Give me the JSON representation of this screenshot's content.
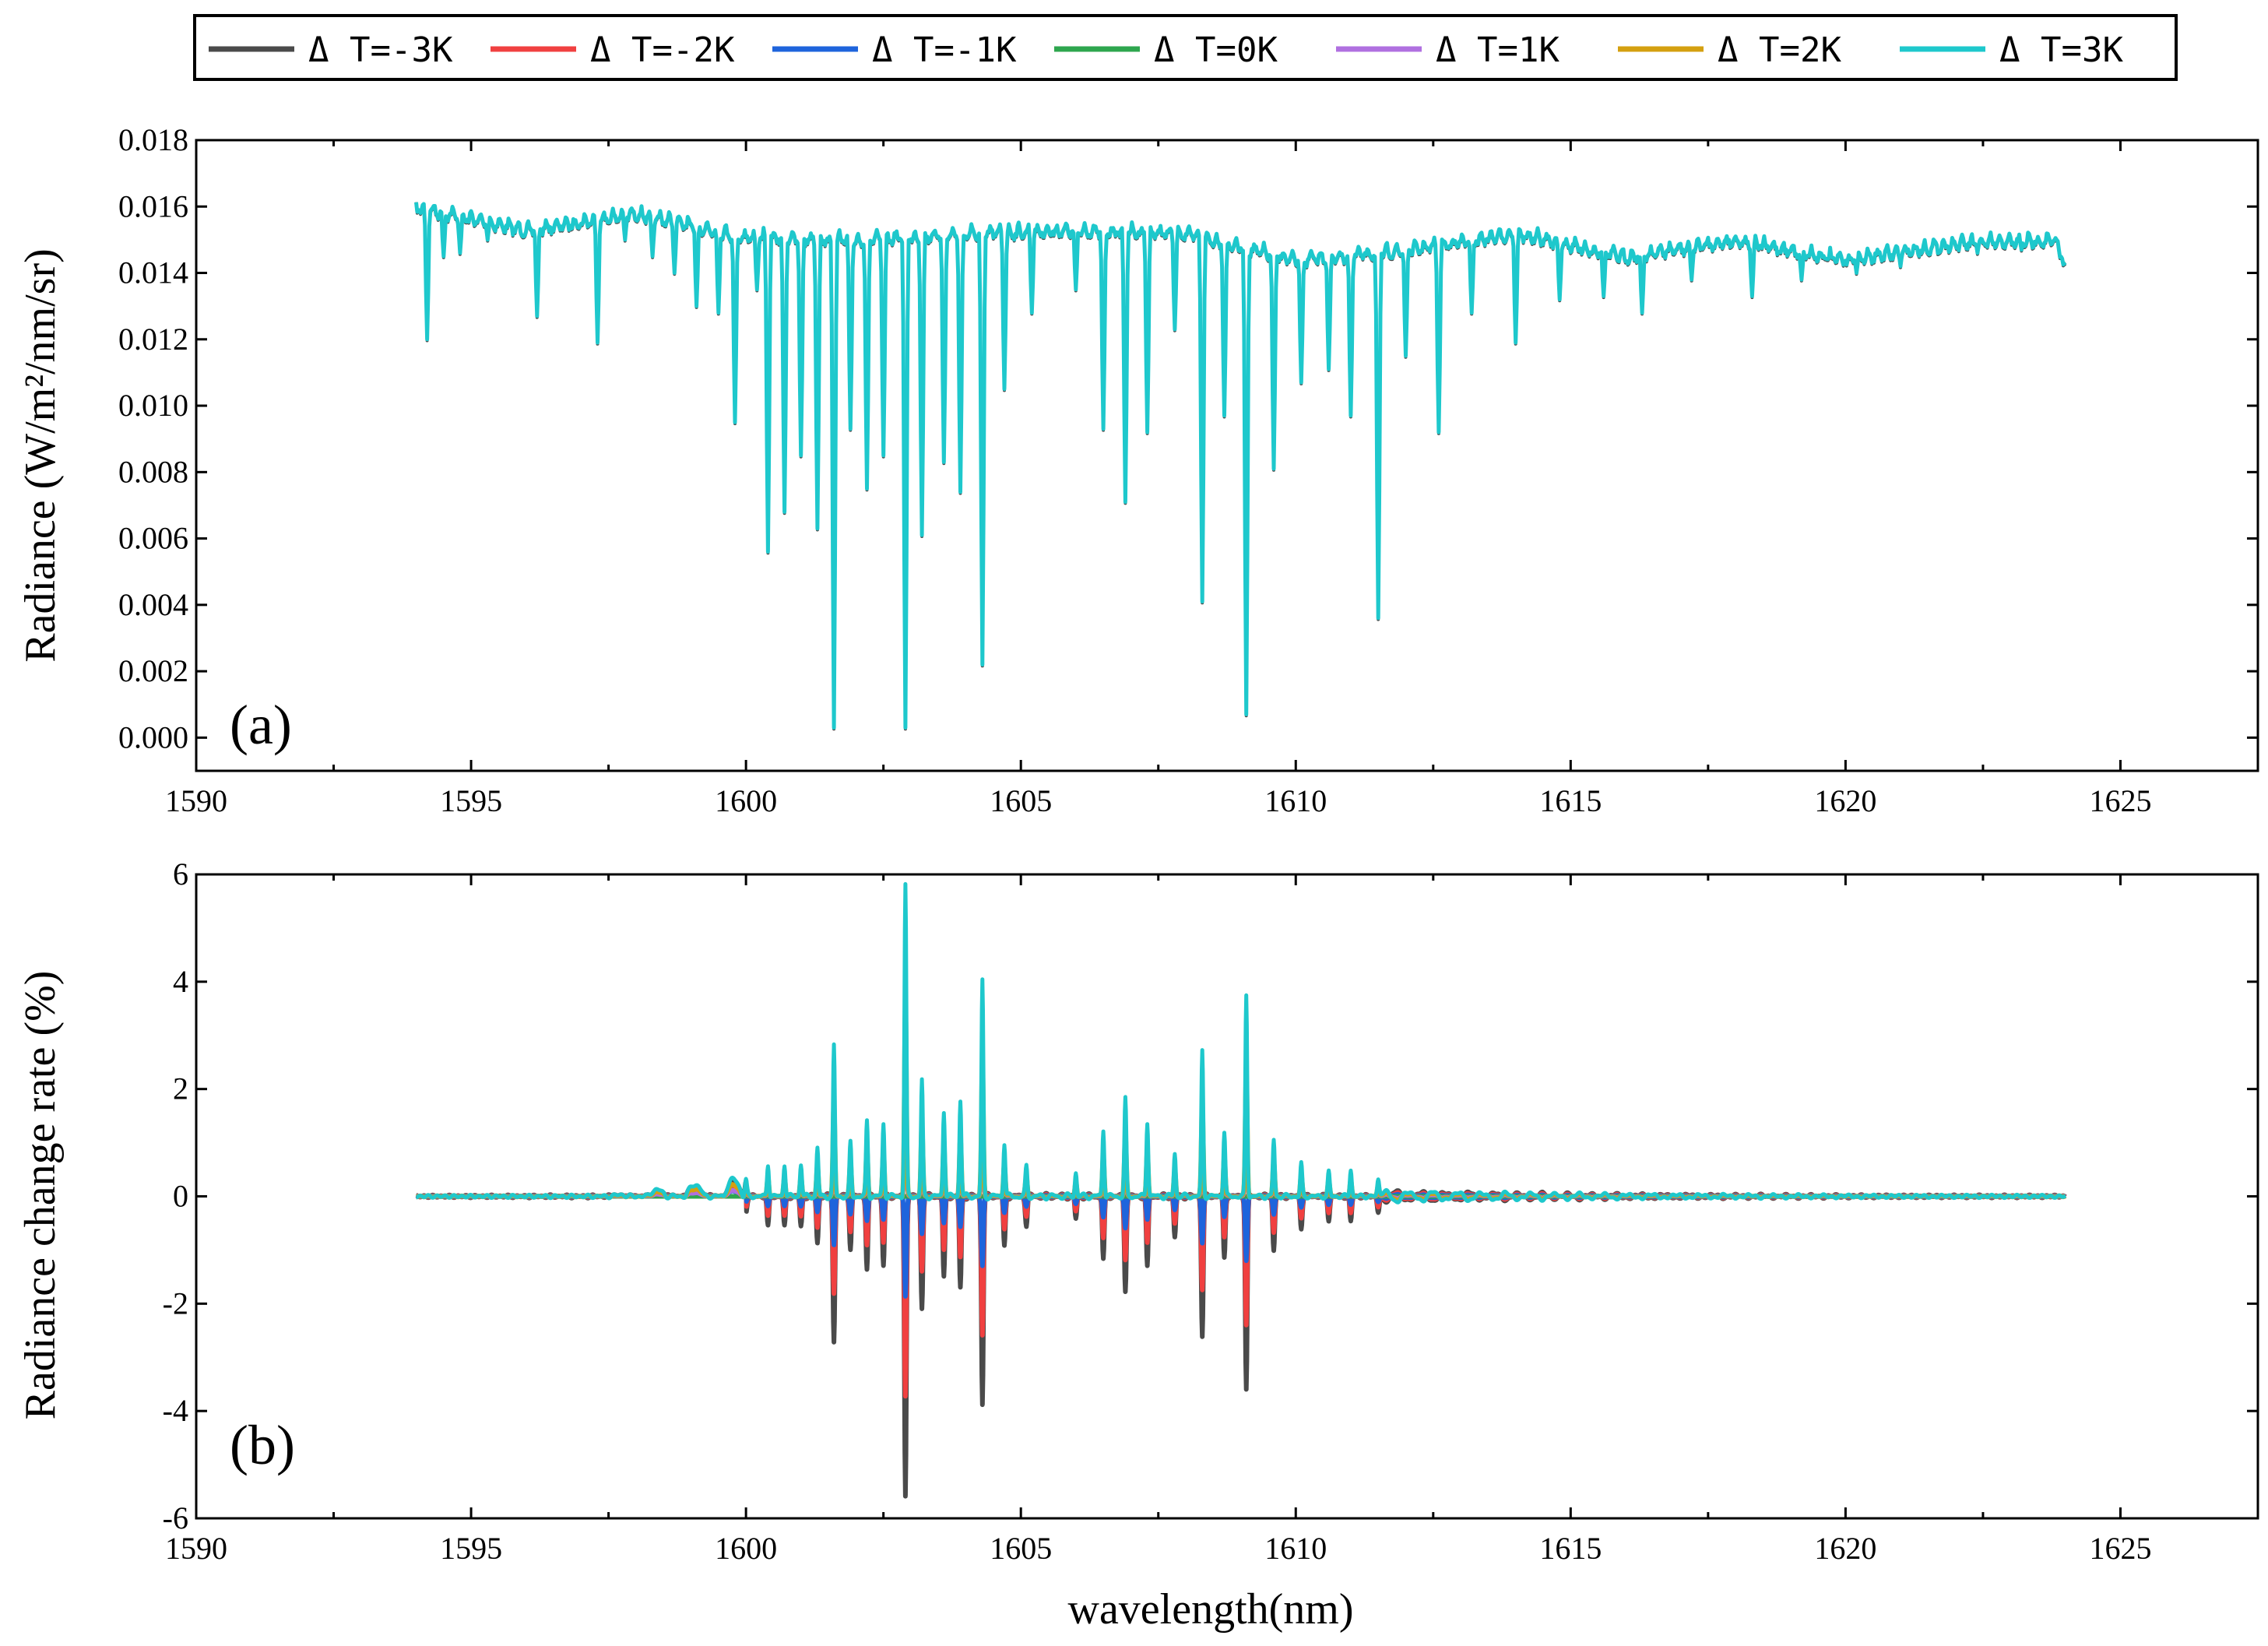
{
  "colors": {
    "dT_m3": "#4a4a4a",
    "dT_m2": "#f04040",
    "dT_m1": "#1e64dc",
    "dT_0": "#2ea64e",
    "dT_p1": "#b070e0",
    "dT_p2": "#d4a010",
    "dT_p3": "#1ec8cc"
  },
  "legend": {
    "entries": [
      {
        "label": "Δ T=-3K",
        "color": "#4a4a4a"
      },
      {
        "label": "Δ T=-2K",
        "color": "#f04040"
      },
      {
        "label": "Δ T=-1K",
        "color": "#1e64dc"
      },
      {
        "label": "Δ T=0K",
        "color": "#2ea64e"
      },
      {
        "label": "Δ T=1K",
        "color": "#b070e0"
      },
      {
        "label": "Δ T=2K",
        "color": "#d4a010"
      },
      {
        "label": "Δ T=3K",
        "color": "#1ec8cc"
      }
    ]
  },
  "chart_data": [
    {
      "type": "line",
      "panel_label": "(a)",
      "title": "",
      "xlabel": "",
      "ylabel": "Radiance (W/m²/nm/sr)",
      "xlim": [
        1590,
        1627.5
      ],
      "ylim": [
        -0.001,
        0.018
      ],
      "xticks": [
        1590,
        1595,
        1600,
        1605,
        1610,
        1615,
        1620,
        1625
      ],
      "yticks": [
        0.0,
        0.002,
        0.004,
        0.006,
        0.008,
        0.01,
        0.012,
        0.014,
        0.016,
        0.018
      ],
      "ytick_labels": [
        "0.000",
        "0.002",
        "0.004",
        "0.006",
        "0.008",
        "0.010",
        "0.012",
        "0.014",
        "0.016",
        "0.018"
      ],
      "grid": false,
      "series_note": "all seven ΔT series overlap; the ΔT=3K curve is drawn on top",
      "x_range": [
        1594,
        1624
      ],
      "baseline": [
        [
          1594,
          0.0163
        ],
        [
          1596,
          0.0156
        ],
        [
          1598,
          0.0161
        ],
        [
          1600,
          0.0154
        ],
        [
          1602,
          0.0153
        ],
        [
          1604,
          0.0155
        ],
        [
          1606,
          0.0156
        ],
        [
          1608,
          0.0155
        ],
        [
          1610,
          0.0147
        ],
        [
          1612,
          0.015
        ],
        [
          1614,
          0.0155
        ],
        [
          1616,
          0.0148
        ],
        [
          1618,
          0.0153
        ],
        [
          1620,
          0.0147
        ],
        [
          1622,
          0.0152
        ],
        [
          1623.8,
          0.0153
        ],
        [
          1624,
          0.0146
        ]
      ],
      "absorption_lines": [
        [
          1594.2,
          0.012
        ],
        [
          1594.5,
          0.0145
        ],
        [
          1594.8,
          0.0146
        ],
        [
          1595.3,
          0.015
        ],
        [
          1596.2,
          0.0127
        ],
        [
          1597.3,
          0.0119
        ],
        [
          1597.8,
          0.015
        ],
        [
          1598.3,
          0.0145
        ],
        [
          1598.7,
          0.014
        ],
        [
          1599.1,
          0.013
        ],
        [
          1599.5,
          0.0128
        ],
        [
          1599.8,
          0.0095
        ],
        [
          1600.2,
          0.0135
        ],
        [
          1600.4,
          0.0056
        ],
        [
          1600.7,
          0.0068
        ],
        [
          1601.0,
          0.0085
        ],
        [
          1601.3,
          0.0063
        ],
        [
          1601.6,
          0.0003
        ],
        [
          1601.9,
          0.0093
        ],
        [
          1602.2,
          0.0075
        ],
        [
          1602.5,
          0.0085
        ],
        [
          1602.9,
          0.0003
        ],
        [
          1603.2,
          0.0061
        ],
        [
          1603.6,
          0.0083
        ],
        [
          1603.9,
          0.0074
        ],
        [
          1604.3,
          0.0022
        ],
        [
          1604.7,
          0.0105
        ],
        [
          1605.2,
          0.0128
        ],
        [
          1606.0,
          0.0135
        ],
        [
          1606.5,
          0.0093
        ],
        [
          1606.9,
          0.0071
        ],
        [
          1607.3,
          0.0092
        ],
        [
          1607.8,
          0.0123
        ],
        [
          1608.3,
          0.0041
        ],
        [
          1608.7,
          0.0097
        ],
        [
          1609.1,
          0.0007
        ],
        [
          1609.6,
          0.0081
        ],
        [
          1610.1,
          0.0107
        ],
        [
          1610.6,
          0.0111
        ],
        [
          1611.0,
          0.0097
        ],
        [
          1611.5,
          0.0036
        ],
        [
          1612.0,
          0.0115
        ],
        [
          1612.6,
          0.0092
        ],
        [
          1613.2,
          0.0128
        ],
        [
          1614.0,
          0.0119
        ],
        [
          1614.8,
          0.0132
        ],
        [
          1615.6,
          0.0133
        ],
        [
          1616.3,
          0.0128
        ],
        [
          1617.2,
          0.0138
        ],
        [
          1618.3,
          0.0133
        ],
        [
          1619.2,
          0.0138
        ],
        [
          1620.2,
          0.014
        ],
        [
          1621.0,
          0.0142
        ],
        [
          1622.4,
          0.0146
        ],
        [
          1623.2,
          0.0147
        ]
      ]
    },
    {
      "type": "line",
      "panel_label": "(b)",
      "title": "",
      "xlabel": "wavelength(nm)",
      "ylabel": "Radiance change rate (%)",
      "xlim": [
        1590,
        1627.5
      ],
      "ylim": [
        -6,
        6
      ],
      "xticks": [
        1590,
        1595,
        1600,
        1605,
        1610,
        1615,
        1620,
        1625
      ],
      "yticks": [
        -6,
        -4,
        -2,
        0,
        2,
        4,
        6
      ],
      "ytick_labels": [
        "-6",
        "-4",
        "-2",
        "0",
        "2",
        "4",
        "6"
      ],
      "grid": false,
      "x_range": [
        1594,
        1624
      ],
      "dT3_peaks": [
        [
          1600.0,
          0.3
        ],
        [
          1600.4,
          0.6
        ],
        [
          1600.7,
          0.6
        ],
        [
          1601.0,
          0.6
        ],
        [
          1601.3,
          0.9
        ],
        [
          1601.6,
          2.8
        ],
        [
          1601.9,
          1.0
        ],
        [
          1602.2,
          1.4
        ],
        [
          1602.5,
          1.35
        ],
        [
          1602.9,
          5.8
        ],
        [
          1603.2,
          2.15
        ],
        [
          1603.6,
          1.6
        ],
        [
          1603.9,
          1.8
        ],
        [
          1604.3,
          4.0
        ],
        [
          1604.7,
          1.0
        ],
        [
          1605.1,
          0.55
        ],
        [
          1606.0,
          0.45
        ],
        [
          1606.5,
          1.25
        ],
        [
          1606.9,
          1.8
        ],
        [
          1607.3,
          1.4
        ],
        [
          1607.8,
          0.8
        ],
        [
          1608.3,
          2.7
        ],
        [
          1608.7,
          1.2
        ],
        [
          1609.1,
          3.75
        ],
        [
          1609.6,
          1.05
        ],
        [
          1610.1,
          0.6
        ],
        [
          1610.6,
          0.45
        ],
        [
          1611.0,
          0.5
        ],
        [
          1611.5,
          0.3
        ]
      ],
      "ratios_by_dT": [
        {
          "dT": -3,
          "ratio": -0.96
        },
        {
          "dT": -2,
          "ratio": -0.64
        },
        {
          "dT": -1,
          "ratio": -0.32
        },
        {
          "dT": 0,
          "ratio": 0.0
        },
        {
          "dT": 1,
          "ratio": 0.32
        },
        {
          "dT": 2,
          "ratio": 0.64
        },
        {
          "dT": 3,
          "ratio": 1.0
        }
      ]
    }
  ]
}
